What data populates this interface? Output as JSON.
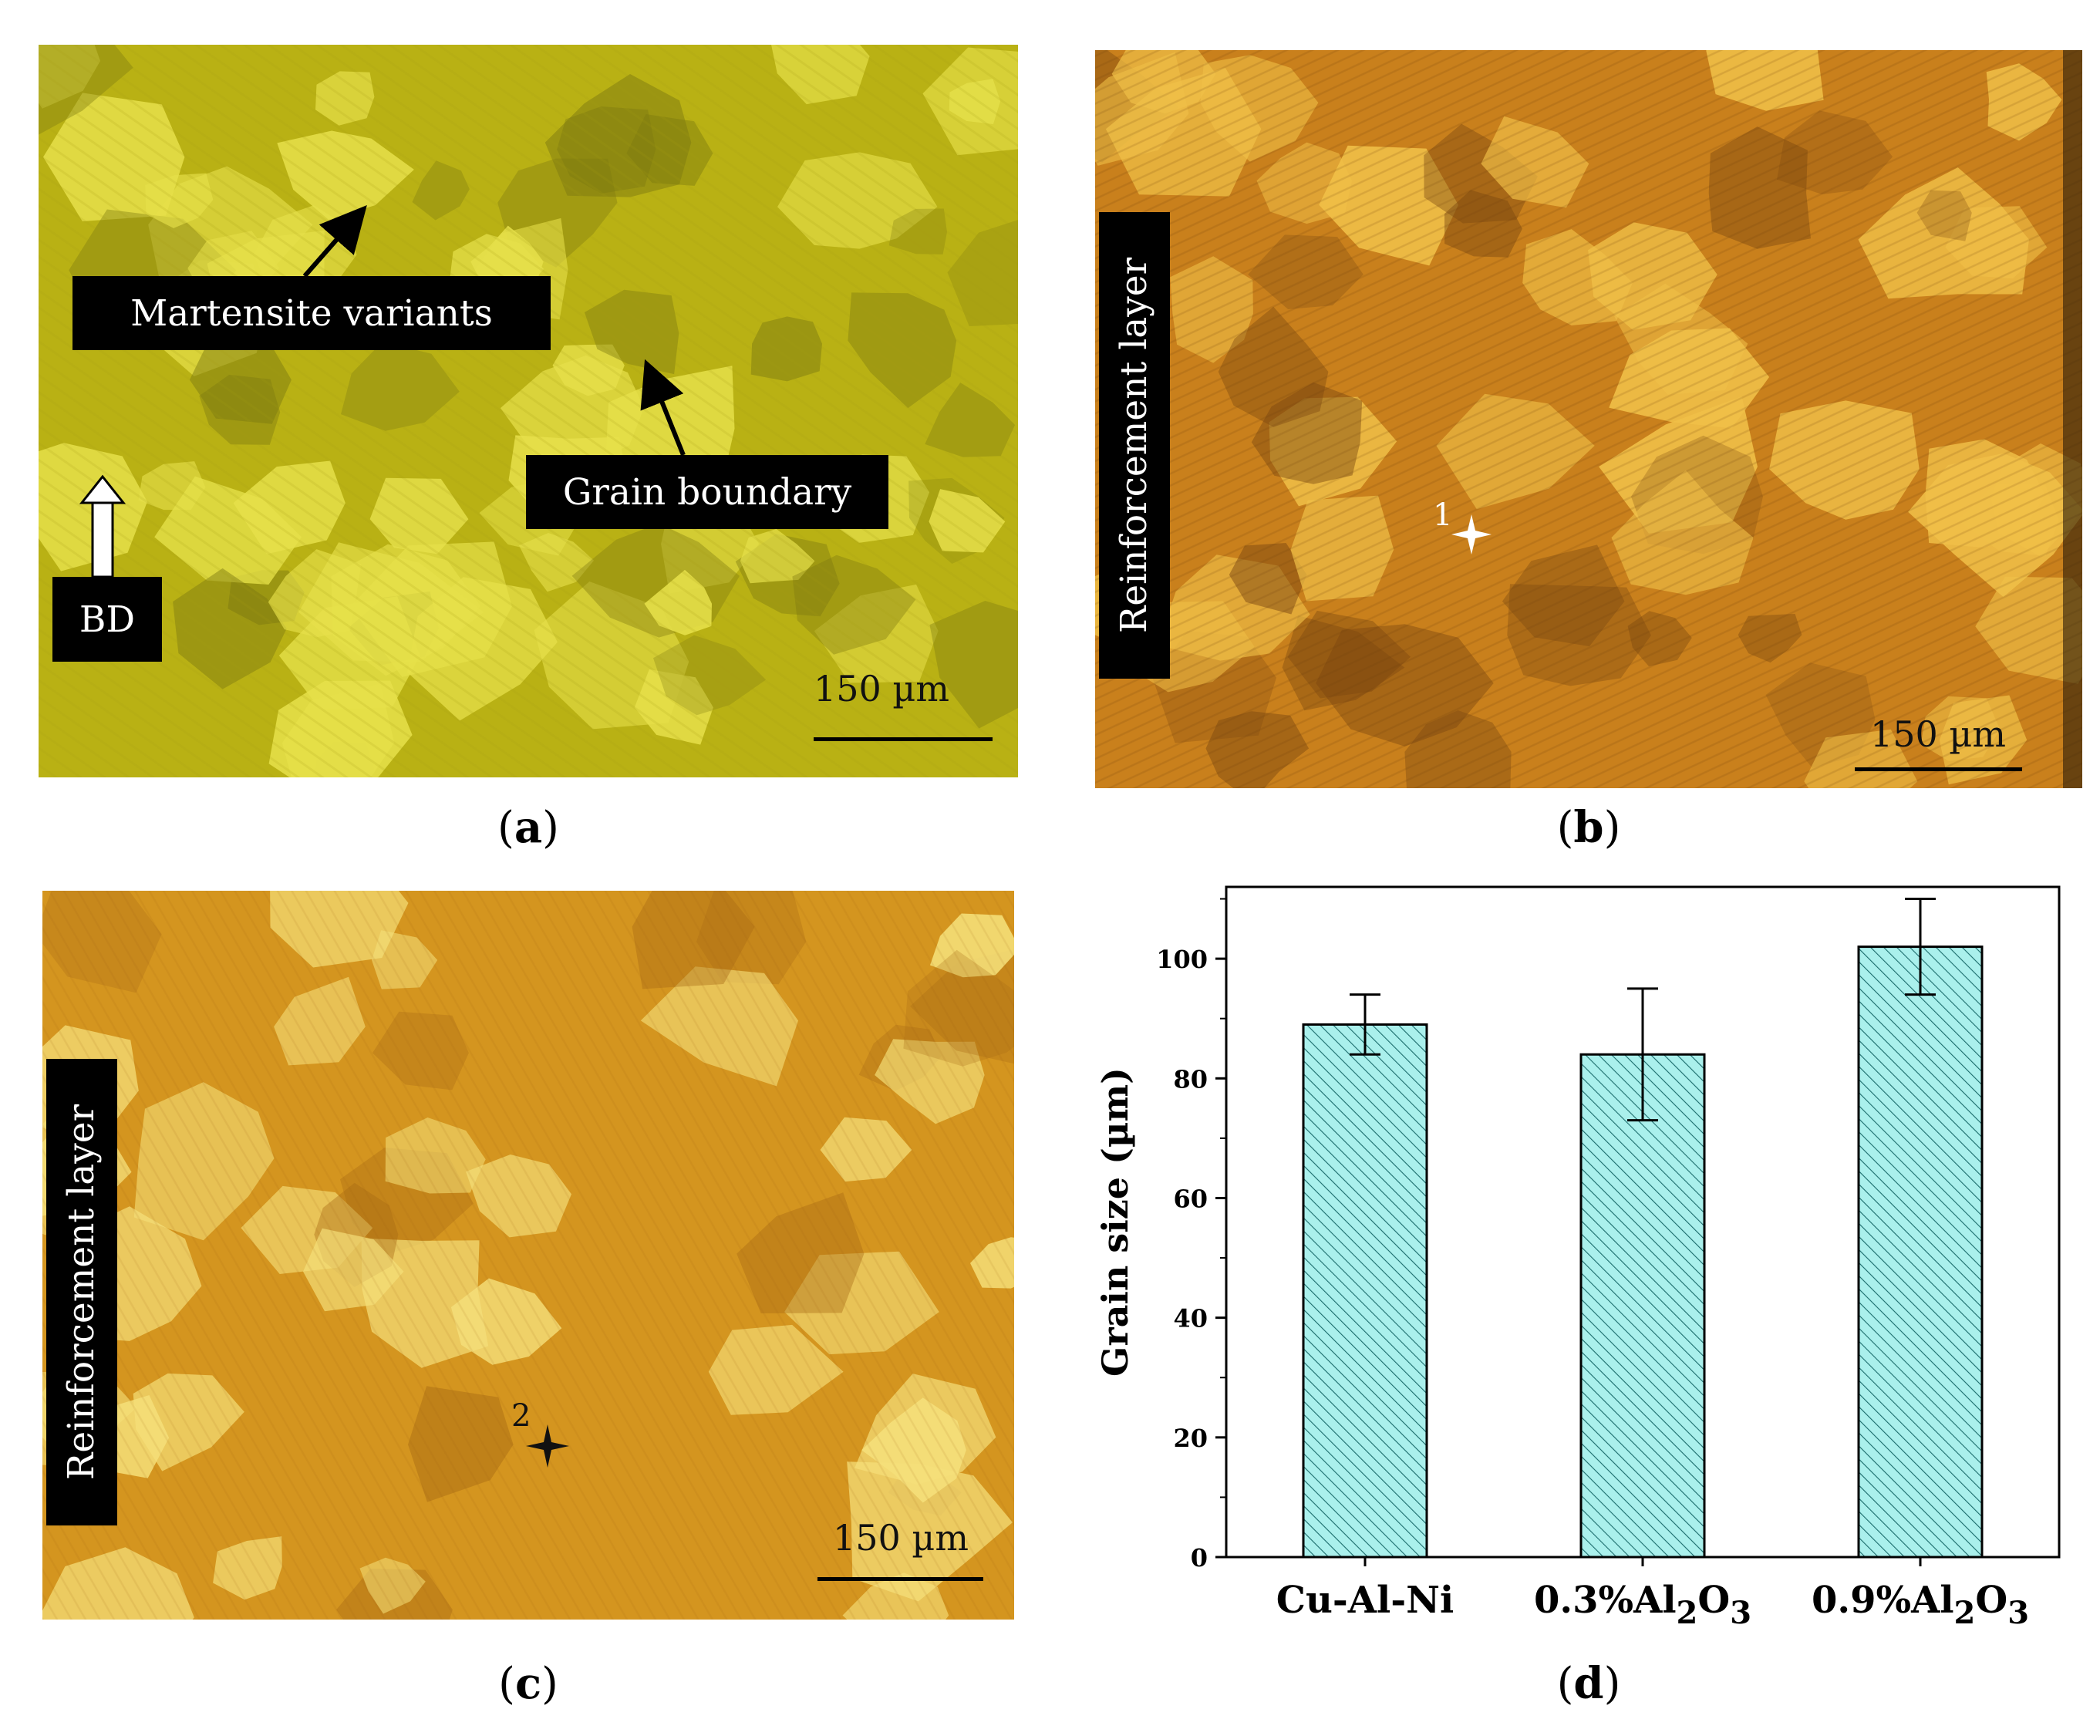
{
  "panels": {
    "a": {
      "caption_letter": "a",
      "labels": {
        "martensite": "Martensite variants",
        "grain_boundary": "Grain boundary",
        "build_direction": "BD"
      },
      "scale_bar": "150 µm",
      "colors": {
        "base": "#b9b114",
        "grain": "#e6e04a",
        "dark": "#7d7a10"
      }
    },
    "b": {
      "caption_letter": "b",
      "side_label": "Reinforcement layer",
      "marker": "1",
      "scale_bar": "150 µm",
      "colors": {
        "base": "#c9801c",
        "grain": "#f0c048",
        "dark": "#7a4610"
      }
    },
    "c": {
      "caption_letter": "c",
      "side_label": "Reinforcement layer",
      "marker": "2",
      "scale_bar": "150 µm",
      "colors": {
        "base": "#d4951f",
        "grain": "#f5e07a",
        "dark": "#a86a14"
      }
    },
    "d": {
      "caption_letter": "d"
    }
  },
  "chart_data": {
    "type": "bar",
    "categories": [
      "Cu-Al-Ni",
      "0.3%Al2O3",
      "0.9%Al2O3"
    ],
    "category_labels": [
      {
        "main": "Cu-Al-Ni"
      },
      {
        "main": "0.3%Al",
        "sub1": "2",
        "mid": "O",
        "sub2": "3"
      },
      {
        "main": "0.9%Al",
        "sub1": "2",
        "mid": "O",
        "sub2": "3"
      }
    ],
    "values": [
      89,
      84,
      102
    ],
    "error_low": [
      84,
      73,
      94
    ],
    "error_high": [
      94,
      95,
      110
    ],
    "ylabel": "Grain size (µm)",
    "xlabel": "",
    "ylim": [
      0,
      112
    ],
    "yticks": [
      0,
      20,
      40,
      60,
      80,
      100
    ],
    "bar_fill": "#aaf0ec",
    "hatch_color": "#1a6b6b",
    "grid": false
  }
}
